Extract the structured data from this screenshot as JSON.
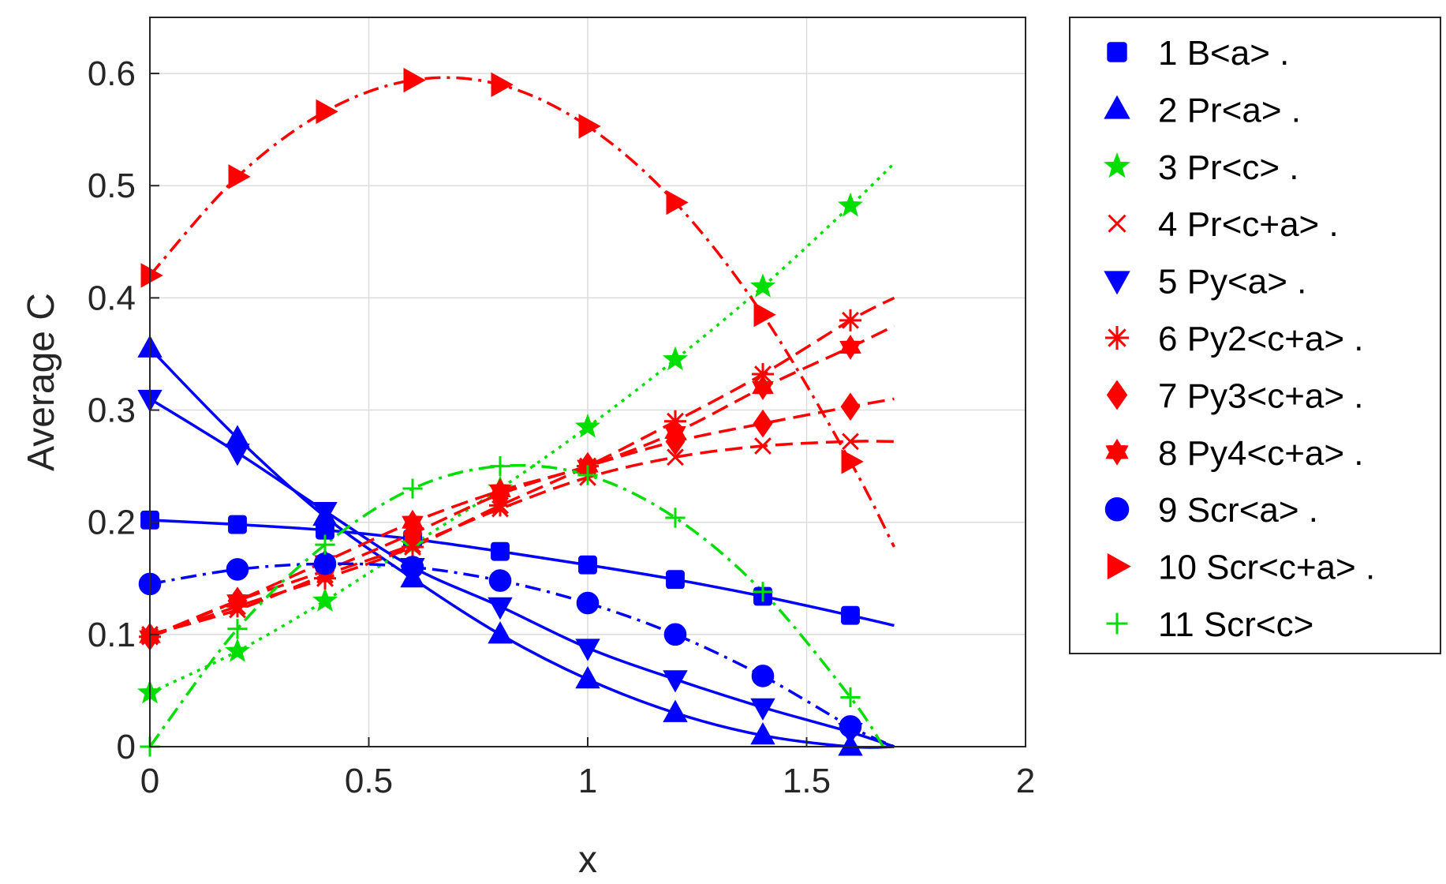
{
  "chart_data": {
    "type": "line",
    "title": "",
    "xlabel": "x",
    "ylabel": "Average C",
    "xlim": [
      0,
      2
    ],
    "ylim": [
      0,
      0.65
    ],
    "xticks": [
      0,
      0.5,
      1,
      1.5,
      2
    ],
    "xtick_labels": [
      "0",
      "0.5",
      "1",
      "1.5",
      "2"
    ],
    "yticks": [
      0,
      0.1,
      0.2,
      0.3,
      0.4,
      0.5,
      0.6
    ],
    "ytick_labels": [
      "0",
      "0.1",
      "0.2",
      "0.3",
      "0.4",
      "0.5",
      "0.6"
    ],
    "grid": true,
    "legend_position": "outside-right",
    "x": [
      0,
      0.2,
      0.4,
      0.6,
      0.8,
      1.0,
      1.2,
      1.4,
      1.6
    ],
    "series": [
      {
        "name": "1 B<a> .",
        "color": "#0000ff",
        "marker": "square",
        "line": "solid",
        "values": [
          0.202,
          0.198,
          0.193,
          0.185,
          0.174,
          0.162,
          0.149,
          0.134,
          0.117
        ],
        "line_end": [
          1.7,
          0.108
        ]
      },
      {
        "name": "2 Pr<a> .",
        "color": "#0000ff",
        "marker": "triangle-up",
        "line": "solid",
        "values": [
          0.355,
          0.275,
          0.205,
          0.15,
          0.1,
          0.06,
          0.03,
          0.01,
          0.0
        ],
        "line_end": [
          1.7,
          0.0
        ]
      },
      {
        "name": "3 Pr<c> .",
        "color": "#00dd00",
        "marker": "star",
        "line": "dotted",
        "values": [
          0.048,
          0.085,
          0.13,
          0.18,
          0.23,
          0.285,
          0.345,
          0.41,
          0.482
        ],
        "line_end": [
          1.7,
          0.52
        ]
      },
      {
        "name": "4 Pr<c+a> .",
        "color": "#ff0000",
        "marker": "x",
        "line": "dashed",
        "values": [
          0.1,
          0.122,
          0.153,
          0.18,
          0.212,
          0.24,
          0.258,
          0.268,
          0.272
        ],
        "line_end": [
          1.7,
          0.272
        ]
      },
      {
        "name": "5 Py<a> .",
        "color": "#0000ff",
        "marker": "triangle-down",
        "line": "solid",
        "values": [
          0.31,
          0.262,
          0.21,
          0.16,
          0.125,
          0.088,
          0.06,
          0.035,
          0.013
        ],
        "line_end": [
          1.7,
          0.0
        ]
      },
      {
        "name": "6 Py2<c+a> .",
        "color": "#ff0000",
        "marker": "asterisk",
        "line": "dashed",
        "values": [
          0.098,
          0.125,
          0.15,
          0.178,
          0.215,
          0.25,
          0.29,
          0.332,
          0.38
        ],
        "line_end": [
          1.7,
          0.4
        ]
      },
      {
        "name": "7 Py3<c+a> .",
        "color": "#ff0000",
        "marker": "diamond",
        "line": "dashed",
        "values": [
          0.098,
          0.13,
          0.157,
          0.19,
          0.225,
          0.25,
          0.272,
          0.288,
          0.303
        ],
        "line_end": [
          1.7,
          0.31
        ]
      },
      {
        "name": "8 Py4<c+a> .",
        "color": "#ff0000",
        "marker": "hexagram",
        "line": "dashed",
        "values": [
          0.098,
          0.13,
          0.165,
          0.2,
          0.228,
          0.25,
          0.28,
          0.32,
          0.356
        ],
        "line_end": [
          1.7,
          0.375
        ]
      },
      {
        "name": "9 Scr<a> .",
        "color": "#0000ff",
        "marker": "circle",
        "line": "dashdot",
        "values": [
          0.145,
          0.158,
          0.163,
          0.16,
          0.148,
          0.128,
          0.1,
          0.063,
          0.018
        ],
        "line_end": [
          1.7,
          0.0
        ]
      },
      {
        "name": "10 Scr<c+a> .",
        "color": "#ff0000",
        "marker": "triangle-right",
        "line": "dashdot",
        "values": [
          0.42,
          0.508,
          0.566,
          0.594,
          0.59,
          0.553,
          0.485,
          0.385,
          0.254
        ],
        "line_end": [
          1.7,
          0.178
        ]
      },
      {
        "name": "11 Scr<c>",
        "color": "#00dd00",
        "marker": "plus",
        "line": "dashdot",
        "values": [
          0.0,
          0.105,
          0.18,
          0.23,
          0.25,
          0.242,
          0.204,
          0.138,
          0.044
        ],
        "line_end": [
          1.675,
          0.0
        ]
      }
    ]
  }
}
